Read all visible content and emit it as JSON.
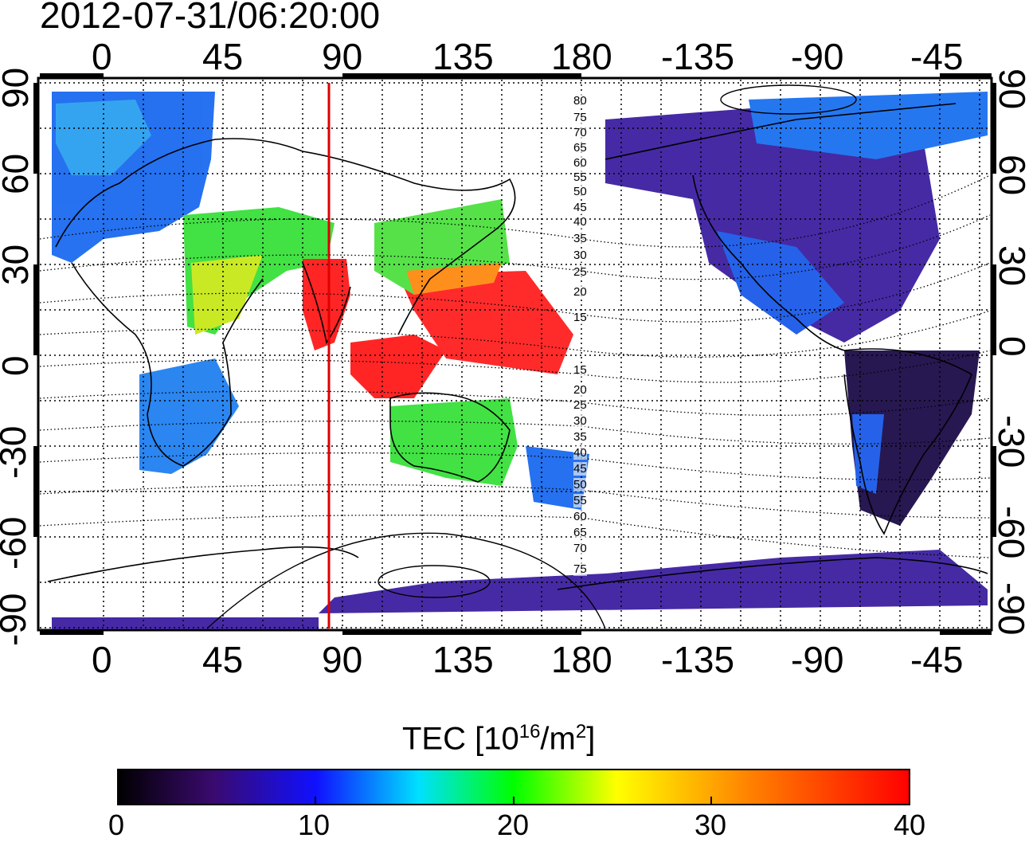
{
  "title": "2012-07-31/06:20:00",
  "map": {
    "lon_tick_labels": [
      "0",
      "45",
      "90",
      "135",
      "180",
      "-135",
      "-90",
      "-45"
    ],
    "lat_tick_labels": [
      "90",
      "60",
      "30",
      "0",
      "-30",
      "-60",
      "-90"
    ],
    "contour_labels": [
      "80",
      "75",
      "70",
      "65",
      "60",
      "55",
      "50",
      "45",
      "40",
      "35",
      "30",
      "25",
      "20",
      "15",
      "15",
      "20",
      "25",
      "30",
      "35",
      "40",
      "45",
      "50",
      "55",
      "60",
      "65",
      "70",
      "75"
    ],
    "marker_line_color": "#e00000",
    "marker_line_longitude": 85,
    "colors": {
      "background": "#ffffff",
      "grid": "#000000",
      "coast": "#000000"
    }
  },
  "colorbar": {
    "label_prefix": "TEC  [10",
    "label_exp": "16",
    "label_mid": "/m",
    "label_exp2": "2",
    "label_suffix": "]",
    "ticks": [
      "0",
      "10",
      "20",
      "30",
      "40"
    ],
    "range": [
      0,
      40
    ],
    "colors": [
      "#000000",
      "#3a0a6e",
      "#1010ff",
      "#00e0ff",
      "#00ff00",
      "#ffff00",
      "#ff8000",
      "#ff0000"
    ]
  }
}
